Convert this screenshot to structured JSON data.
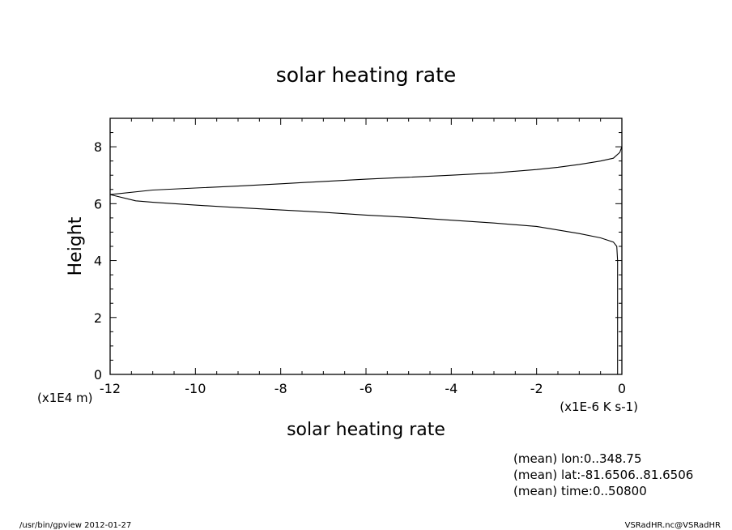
{
  "chart_data": {
    "type": "line",
    "title": "solar heating rate",
    "xlabel": "solar heating rate",
    "ylabel": "Height",
    "xunits": "(x1E-6 K s-1)",
    "yunits": "(x1E4 m)",
    "xlim": [
      -12,
      0
    ],
    "ylim": [
      0,
      9
    ],
    "xticks": [
      "-12",
      "-10",
      "-8",
      "-6",
      "-4",
      "-2",
      "0"
    ],
    "yticks": [
      "0",
      "2",
      "4",
      "6",
      "8"
    ],
    "grid": false,
    "series": [
      {
        "x": [
          -0.1,
          -0.1,
          -0.1,
          -0.12,
          -0.2,
          -0.5,
          -1,
          -2,
          -3,
          -4,
          -5,
          -6,
          -7,
          -8,
          -9,
          -10,
          -11,
          -11.4,
          -12,
          -11,
          -10,
          -9,
          -8,
          -7,
          -6,
          -5,
          -4,
          -3,
          -2,
          -1.5,
          -1,
          -0.5,
          -0.2,
          -0.05,
          0
        ],
        "y": [
          0,
          2,
          4,
          4.5,
          4.65,
          4.8,
          4.95,
          5.2,
          5.32,
          5.42,
          5.52,
          5.6,
          5.7,
          5.78,
          5.86,
          5.95,
          6.05,
          6.1,
          6.32,
          6.48,
          6.55,
          6.62,
          6.7,
          6.78,
          6.86,
          6.93,
          7.0,
          7.08,
          7.2,
          7.28,
          7.38,
          7.5,
          7.6,
          7.8,
          8.0
        ]
      }
    ]
  },
  "notes": {
    "mean_lon": "(mean) lon:0..348.75",
    "mean_lat": "(mean) lat:-81.6506..81.6506",
    "mean_time": "(mean) time:0..50800"
  },
  "footer": {
    "left": "/usr/bin/gpview   2012-01-27",
    "right": "VSRadHR.nc@VSRadHR"
  }
}
